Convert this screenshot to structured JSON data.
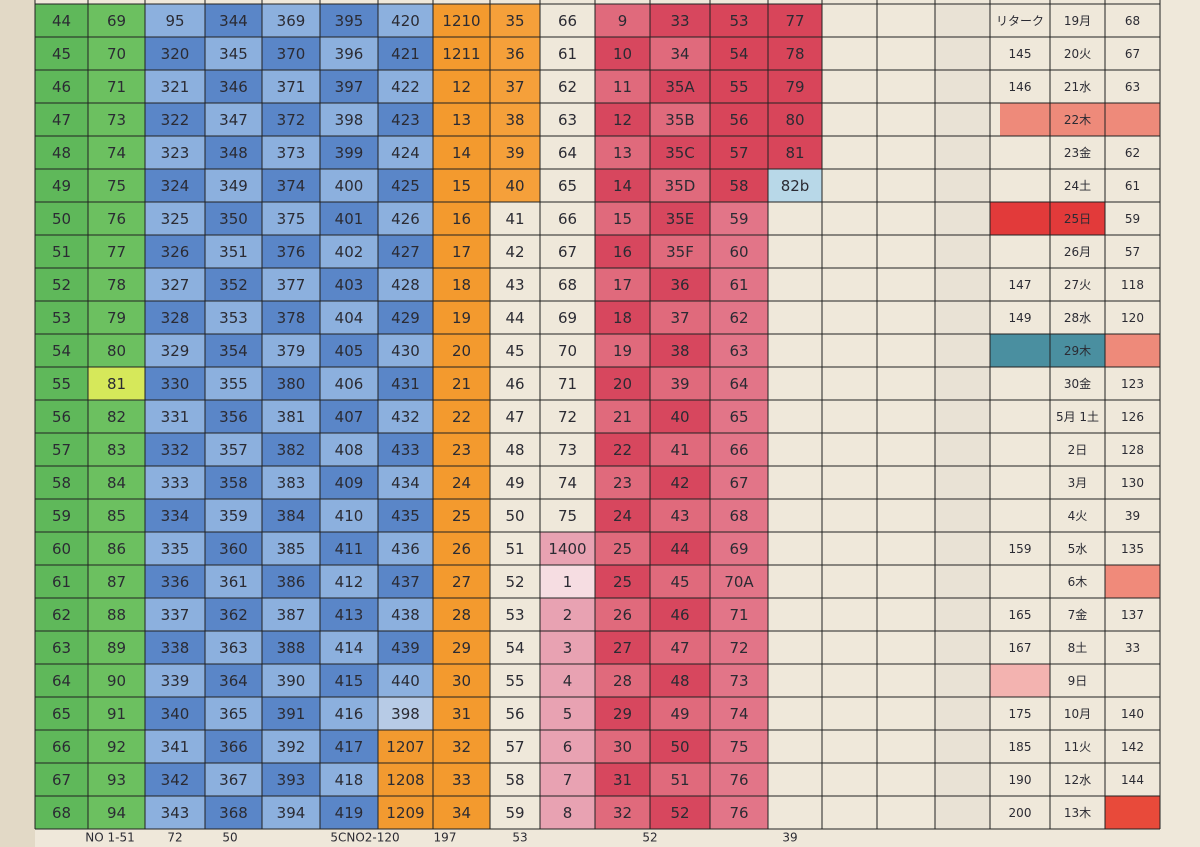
{
  "columns": [
    {
      "cells": [
        "44",
        "45",
        "46",
        "47",
        "48",
        "49",
        "50",
        "51",
        "52",
        "53",
        "54",
        "55",
        "56",
        "57",
        "58",
        "59",
        "60",
        "61",
        "62",
        "63",
        "64",
        "65",
        "66",
        "67",
        "68"
      ]
    },
    {
      "cells": [
        "69",
        "70",
        "71",
        "73",
        "74",
        "75",
        "76",
        "77",
        "78",
        "79",
        "80",
        "81",
        "82",
        "83",
        "84",
        "85",
        "86",
        "87",
        "88",
        "89",
        "90",
        "91",
        "92",
        "93",
        "94"
      ]
    },
    {
      "cells": [
        "95",
        "320",
        "321",
        "322",
        "323",
        "324",
        "325",
        "326",
        "327",
        "328",
        "329",
        "330",
        "331",
        "332",
        "333",
        "334",
        "335",
        "336",
        "337",
        "338",
        "339",
        "340",
        "341",
        "342",
        "343"
      ]
    },
    {
      "cells": [
        "344",
        "345",
        "346",
        "347",
        "348",
        "349",
        "350",
        "351",
        "352",
        "353",
        "354",
        "355",
        "356",
        "357",
        "358",
        "359",
        "360",
        "361",
        "362",
        "363",
        "364",
        "365",
        "366",
        "367",
        "368"
      ]
    },
    {
      "cells": [
        "369",
        "370",
        "371",
        "372",
        "373",
        "374",
        "375",
        "376",
        "377",
        "378",
        "379",
        "380",
        "381",
        "382",
        "383",
        "384",
        "385",
        "386",
        "387",
        "388",
        "390",
        "391",
        "392",
        "393",
        "394"
      ]
    },
    {
      "cells": [
        "395",
        "396",
        "397",
        "398",
        "399",
        "400",
        "401",
        "402",
        "403",
        "404",
        "405",
        "406",
        "407",
        "408",
        "409",
        "410",
        "411",
        "412",
        "413",
        "414",
        "415",
        "416",
        "417",
        "418",
        "419"
      ]
    },
    {
      "cells": [
        "420",
        "421",
        "422",
        "423",
        "424",
        "425",
        "426",
        "427",
        "428",
        "429",
        "430",
        "431",
        "432",
        "433",
        "434",
        "435",
        "436",
        "437",
        "438",
        "439",
        "440",
        "398",
        "1207",
        "1208",
        "1209"
      ]
    },
    {
      "cells": [
        "1210",
        "1211",
        "12",
        "13",
        "14",
        "15",
        "16",
        "17",
        "18",
        "19",
        "20",
        "21",
        "22",
        "23",
        "24",
        "25",
        "26",
        "27",
        "28",
        "29",
        "30",
        "31",
        "32",
        "33",
        "34"
      ]
    },
    {
      "cells": [
        "35",
        "36",
        "37",
        "38",
        "39",
        "40",
        "41",
        "42",
        "43",
        "44",
        "45",
        "46",
        "47",
        "48",
        "49",
        "50",
        "51",
        "52",
        "53",
        "54",
        "55",
        "56",
        "57",
        "58",
        "59"
      ]
    },
    {
      "cells": [
        "66",
        "61",
        "62",
        "63",
        "64",
        "65",
        "66",
        "67",
        "68",
        "69",
        "70",
        "71",
        "72",
        "73",
        "74",
        "75",
        "1400",
        "1",
        "2",
        "3",
        "4",
        "5",
        "6",
        "7",
        "8"
      ]
    },
    {
      "cells": [
        "9",
        "10",
        "11",
        "12",
        "13",
        "14",
        "15",
        "16",
        "17",
        "18",
        "19",
        "20",
        "21",
        "22",
        "23",
        "24",
        "25",
        "25",
        "26",
        "27",
        "28",
        "29",
        "30",
        "31",
        "32"
      ]
    },
    {
      "cells": [
        "33",
        "34",
        "35A",
        "35B",
        "35C",
        "35D",
        "35E",
        "35F",
        "36",
        "37",
        "38",
        "39",
        "40",
        "41",
        "42",
        "43",
        "44",
        "45",
        "46",
        "47",
        "48",
        "49",
        "50",
        "51",
        "52"
      ]
    },
    {
      "cells": [
        "53",
        "54",
        "55",
        "56",
        "57",
        "58",
        "59",
        "60",
        "61",
        "62",
        "63",
        "64",
        "65",
        "66",
        "67",
        "68",
        "69",
        "70A",
        "71",
        "72",
        "73",
        "74",
        "75",
        "76",
        "76"
      ]
    },
    {
      "cells": [
        "77",
        "78",
        "79",
        "80",
        "81",
        "82b",
        null,
        null,
        null,
        null,
        null,
        null,
        null,
        null,
        null,
        null,
        null,
        null,
        null,
        null,
        null,
        null,
        null,
        null,
        null
      ]
    }
  ],
  "right_columns": [
    {
      "cells": [
        "リターク",
        "145",
        "146",
        null,
        null,
        null,
        null,
        null,
        "147",
        "149",
        null,
        null,
        null,
        null,
        null,
        null,
        "159",
        null,
        "165",
        "167",
        null,
        "175",
        "185",
        "190",
        "200"
      ]
    },
    {
      "cells": [
        "19月",
        "20火",
        "21水",
        "22木",
        "23金",
        "24土",
        "25日",
        "26月",
        "27火",
        "28水",
        "29木",
        "30金",
        "5月 1土",
        "2日",
        "3月",
        "4火",
        "5水",
        "6木",
        "7金",
        "8土",
        "9日",
        "10月",
        "11火",
        "12水",
        "13木"
      ]
    },
    {
      "cells": [
        "68",
        "67",
        "63",
        null,
        "62",
        "61",
        "59",
        "57",
        "118",
        "120",
        null,
        "123",
        "126",
        "128",
        "130",
        "39",
        "135",
        null,
        "137",
        "33",
        null,
        "140",
        "142",
        "144",
        null
      ]
    }
  ],
  "footer": [
    "NO 1-51",
    "72",
    "50",
    "5CNO2-120",
    "197",
    "53",
    "52",
    "39"
  ]
}
